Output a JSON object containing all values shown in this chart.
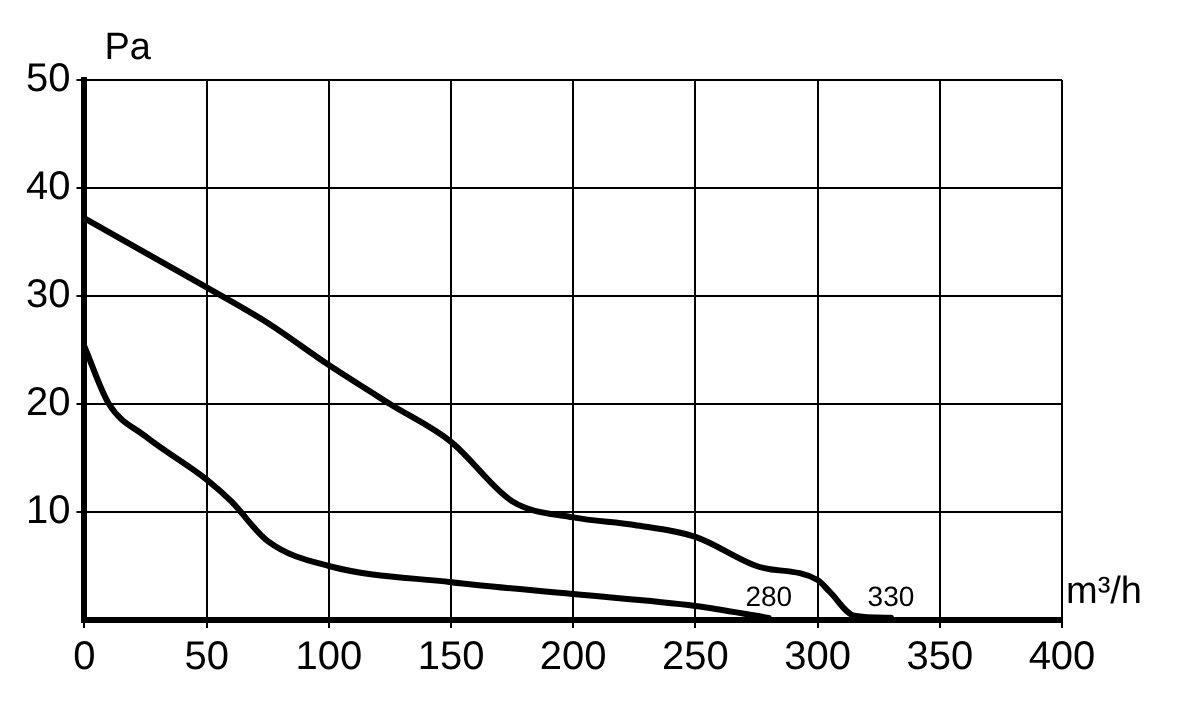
{
  "chart_data": {
    "type": "line",
    "xlabel": "m³/h",
    "ylabel": "Pa",
    "xlim": [
      0,
      400
    ],
    "xticks": [
      0,
      50,
      100,
      150,
      200,
      250,
      300,
      350,
      400
    ],
    "ylim": [
      0,
      50
    ],
    "yticks": [
      10,
      20,
      30,
      40,
      50
    ],
    "grid": true,
    "legend": false,
    "marker": "none",
    "line_style": "solid",
    "series": [
      {
        "color": "#000000",
        "x": [
          0,
          10,
          25,
          50,
          60,
          75,
          100,
          150,
          200,
          250,
          280
        ],
        "values": [
          25.3,
          20,
          17,
          13,
          11,
          7.3,
          5,
          3.5,
          2.4,
          1.3,
          0.2
        ]
      },
      {
        "color": "#000000",
        "x": [
          0,
          25,
          50,
          75,
          100,
          125,
          150,
          175,
          200,
          225,
          250,
          275,
          300,
          305,
          315,
          330
        ],
        "values": [
          37.2,
          34,
          30.8,
          27.5,
          23.6,
          20,
          16.5,
          11,
          9.5,
          8.8,
          7.7,
          5,
          3.7,
          2.6,
          0.4,
          0.2
        ]
      }
    ],
    "annotations": [
      {
        "text": "280",
        "x": 280,
        "y": 0
      },
      {
        "text": "330",
        "x": 330,
        "y": 0
      }
    ]
  }
}
